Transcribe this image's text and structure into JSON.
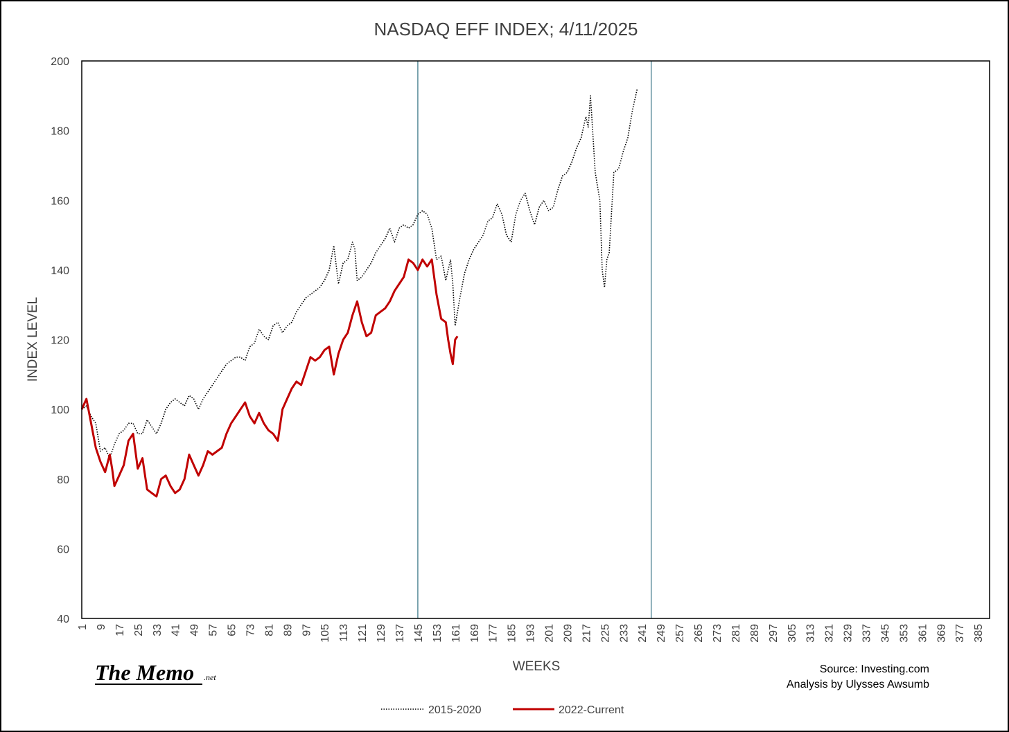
{
  "chart_data": {
    "type": "line",
    "title": "NASDAQ EFF INDEX; 4/11/2025",
    "xlabel": "WEEKS",
    "ylabel": "INDEX LEVEL",
    "xlim": [
      1,
      390
    ],
    "ylim": [
      40,
      200
    ],
    "yticks": [
      40,
      60,
      80,
      100,
      120,
      140,
      160,
      180,
      200
    ],
    "xticks": [
      "1",
      "9",
      "17",
      "25",
      "33",
      "41",
      "49",
      "57",
      "65",
      "73",
      "81",
      "89",
      "97",
      "105",
      "113",
      "121",
      "129",
      "137",
      "145",
      "153",
      "161",
      "169",
      "177",
      "185",
      "193",
      "201",
      "209",
      "217",
      "225",
      "233",
      "241",
      "249",
      "257",
      "265",
      "273",
      "281",
      "289",
      "297",
      "305",
      "313",
      "321",
      "329",
      "337",
      "345",
      "353",
      "361",
      "369",
      "377",
      "385"
    ],
    "vlines": [
      145,
      245
    ],
    "vline_color": "#2e6f80",
    "legend_position": "bottom",
    "series": [
      {
        "name": "2015-2020",
        "color": "#000000",
        "style": "dotted",
        "x": [
          1,
          3,
          5,
          7,
          9,
          11,
          13,
          15,
          17,
          19,
          21,
          23,
          25,
          27,
          29,
          31,
          33,
          35,
          37,
          39,
          41,
          43,
          45,
          47,
          49,
          51,
          53,
          55,
          57,
          59,
          61,
          63,
          65,
          67,
          69,
          71,
          73,
          75,
          77,
          79,
          81,
          83,
          85,
          87,
          89,
          91,
          93,
          95,
          97,
          99,
          101,
          103,
          105,
          107,
          109,
          111,
          113,
          115,
          117,
          118,
          119,
          121,
          123,
          125,
          127,
          129,
          131,
          133,
          135,
          137,
          139,
          141,
          143,
          145,
          147,
          149,
          151,
          153,
          155,
          157,
          159,
          160,
          161,
          163,
          165,
          167,
          169,
          171,
          173,
          175,
          177,
          179,
          181,
          183,
          185,
          187,
          189,
          191,
          193,
          195,
          197,
          199,
          201,
          203,
          205,
          207,
          209,
          211,
          213,
          215,
          217,
          218,
          219,
          221,
          223,
          224,
          225,
          226,
          227,
          229,
          231,
          233,
          235,
          237,
          239
        ],
        "values": [
          100,
          101,
          98,
          96,
          88,
          89,
          86,
          90,
          93,
          94,
          96,
          96,
          93,
          93,
          97,
          95,
          93,
          96,
          100,
          102,
          103,
          102,
          101,
          104,
          103,
          100,
          103,
          105,
          107,
          109,
          111,
          113,
          114,
          115,
          115,
          114,
          118,
          119,
          123,
          121,
          120,
          124,
          125,
          122,
          124,
          125,
          128,
          130,
          132,
          133,
          134,
          135,
          137,
          140,
          147,
          136,
          142,
          143,
          148,
          146,
          137,
          138,
          140,
          142,
          145,
          147,
          149,
          152,
          148,
          152,
          153,
          152,
          153,
          156,
          157,
          156,
          152,
          143,
          144,
          137,
          143,
          136,
          124,
          132,
          139,
          143,
          146,
          148,
          150,
          154,
          155,
          159,
          156,
          150,
          148,
          156,
          160,
          162,
          157,
          153,
          158,
          160,
          157,
          158,
          163,
          167,
          168,
          171,
          175,
          178,
          184,
          181,
          190,
          168,
          160,
          140,
          135,
          143,
          145,
          168,
          169,
          174,
          178,
          186,
          192
        ]
      },
      {
        "name": "2022-Current",
        "color": "#c00000",
        "style": "solid",
        "x": [
          1,
          3,
          5,
          7,
          9,
          11,
          13,
          14,
          15,
          17,
          19,
          21,
          23,
          25,
          27,
          29,
          31,
          33,
          35,
          37,
          39,
          41,
          43,
          45,
          47,
          49,
          51,
          53,
          55,
          57,
          59,
          61,
          63,
          65,
          67,
          69,
          71,
          73,
          75,
          77,
          79,
          81,
          83,
          85,
          87,
          89,
          91,
          93,
          95,
          97,
          99,
          101,
          103,
          105,
          107,
          109,
          111,
          113,
          115,
          117,
          119,
          121,
          123,
          125,
          127,
          129,
          131,
          133,
          135,
          137,
          139,
          141,
          143,
          145,
          147,
          149,
          151,
          153,
          155,
          157,
          158,
          159,
          160,
          161,
          162
        ],
        "values": [
          100,
          103,
          96,
          89,
          85,
          82,
          87,
          83,
          78,
          81,
          84,
          91,
          93,
          83,
          86,
          77,
          76,
          75,
          80,
          81,
          78,
          76,
          77,
          80,
          87,
          84,
          81,
          84,
          88,
          87,
          88,
          89,
          93,
          96,
          98,
          100,
          102,
          98,
          96,
          99,
          96,
          94,
          93,
          91,
          100,
          103,
          106,
          108,
          107,
          111,
          115,
          114,
          115,
          117,
          118,
          110,
          116,
          120,
          122,
          127,
          131,
          125,
          121,
          122,
          127,
          128,
          129,
          131,
          134,
          136,
          138,
          143,
          142,
          140,
          143,
          141,
          143,
          133,
          126,
          125,
          120,
          116,
          113,
          120,
          121
        ]
      }
    ]
  },
  "logo": {
    "main": "The Memo",
    "suffix": ".net"
  },
  "source_text": "Source: Investing.com",
  "analysis_text": "Analysis by Ulysses Awsumb"
}
